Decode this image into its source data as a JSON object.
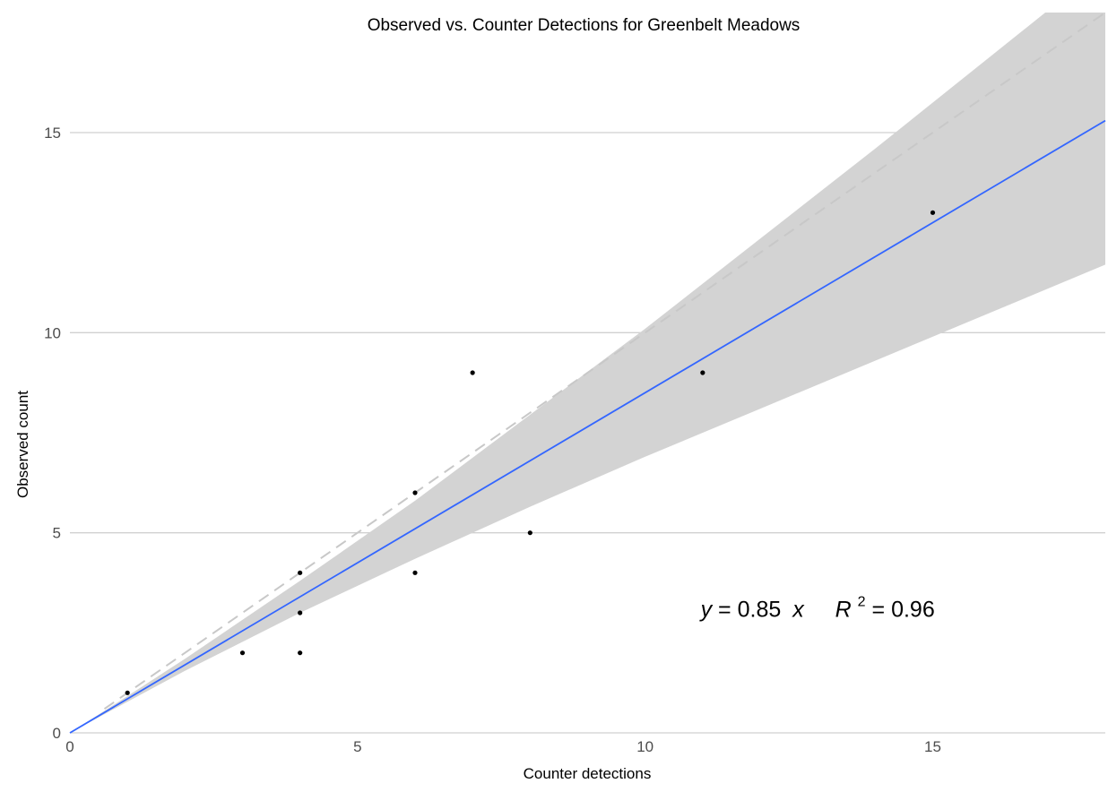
{
  "chart_data": {
    "type": "scatter",
    "title": "Observed vs. Counter Detections for Greenbelt Meadows",
    "xlabel": "Counter detections",
    "ylabel": "Observed count",
    "xlim": [
      0,
      18
    ],
    "ylim": [
      0,
      18
    ],
    "x_ticks": [
      0,
      5,
      10,
      15
    ],
    "y_ticks": [
      0,
      5,
      10,
      15
    ],
    "grid": "horizontal-major",
    "points": [
      {
        "x": 1,
        "y": 1
      },
      {
        "x": 3,
        "y": 2
      },
      {
        "x": 4,
        "y": 2
      },
      {
        "x": 4,
        "y": 3
      },
      {
        "x": 4,
        "y": 4
      },
      {
        "x": 6,
        "y": 4
      },
      {
        "x": 6,
        "y": 6
      },
      {
        "x": 7,
        "y": 9
      },
      {
        "x": 8,
        "y": 5
      },
      {
        "x": 11,
        "y": 9
      },
      {
        "x": 15,
        "y": 13
      }
    ],
    "fit_line": {
      "slope": 0.85,
      "intercept": 0,
      "color": "#3366ff",
      "ci_band": {
        "x": [
          0,
          1,
          2,
          4,
          6,
          8,
          10,
          12,
          14,
          16,
          18
        ],
        "lower": [
          0,
          0.78,
          1.55,
          3.0,
          4.35,
          5.65,
          6.9,
          8.1,
          9.3,
          10.5,
          11.7
        ],
        "upper": [
          0,
          0.92,
          1.85,
          3.8,
          5.8,
          7.95,
          10.1,
          12.35,
          14.6,
          16.9,
          19.2
        ]
      },
      "ci_color": "#d3d3d3"
    },
    "reference_line": {
      "slope": 1,
      "intercept": 0,
      "style": "dashed",
      "color": "#c8c8c8"
    },
    "annotation": {
      "y_sym": "y",
      "eq": "= 0.85",
      "x_sym": "x",
      "r_sym": "R",
      "r_sup": "2",
      "r_eq": "= 0.96",
      "at": {
        "x": 13,
        "y": 2.9
      }
    }
  }
}
